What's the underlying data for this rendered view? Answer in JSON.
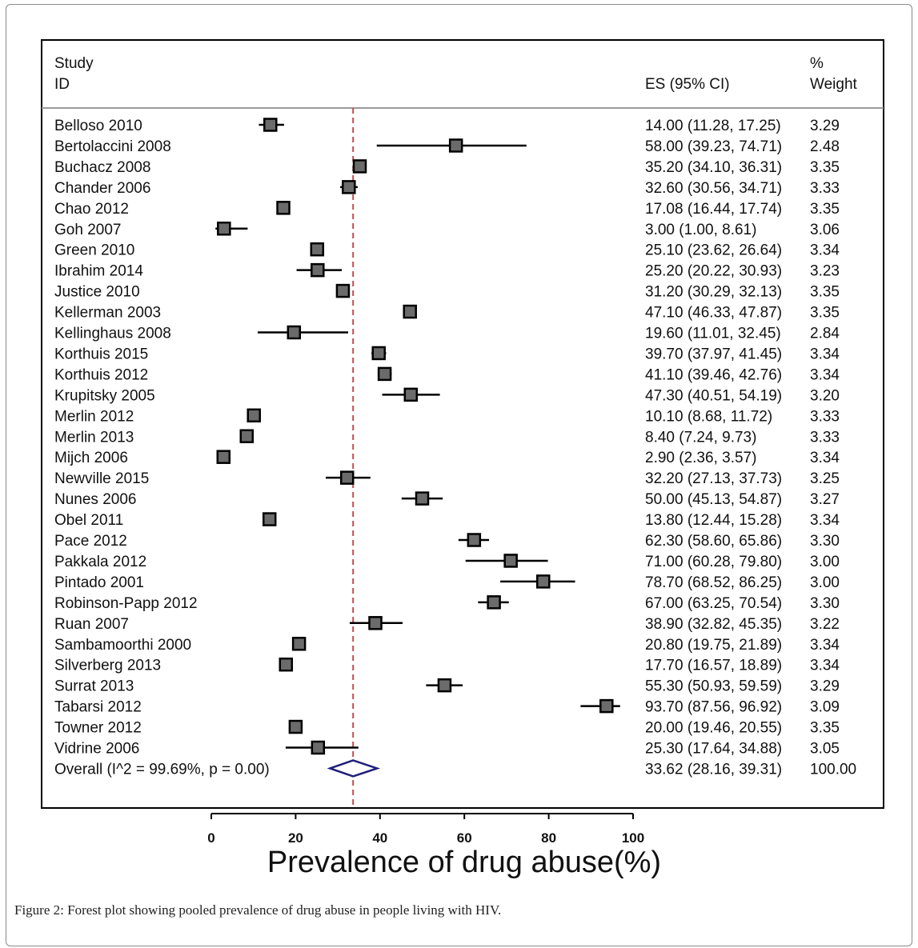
{
  "chart_data": {
    "type": "forest",
    "xlabel": "Prevalence of drug abuse(%)",
    "xlim": [
      0,
      100
    ],
    "xticks": [
      0,
      20,
      40,
      60,
      80,
      100
    ],
    "pooled_reference_line": 33.62,
    "headers": {
      "study_line1": "Study",
      "study_line2": "ID",
      "es": "ES (95% CI)",
      "weight_line1": "%",
      "weight_line2": "Weight"
    },
    "studies": [
      {
        "name": "Belloso 2010",
        "es": 14.0,
        "lo": 11.28,
        "hi": 17.25,
        "es_text": "14.00 (11.28, 17.25)",
        "weight": "3.29"
      },
      {
        "name": "Bertolaccini 2008",
        "es": 58.0,
        "lo": 39.23,
        "hi": 74.71,
        "es_text": "58.00 (39.23, 74.71)",
        "weight": "2.48"
      },
      {
        "name": "Buchacz 2008",
        "es": 35.2,
        "lo": 34.1,
        "hi": 36.31,
        "es_text": "35.20 (34.10, 36.31)",
        "weight": "3.35"
      },
      {
        "name": "Chander 2006",
        "es": 32.6,
        "lo": 30.56,
        "hi": 34.71,
        "es_text": "32.60 (30.56, 34.71)",
        "weight": "3.33"
      },
      {
        "name": "Chao 2012",
        "es": 17.08,
        "lo": 16.44,
        "hi": 17.74,
        "es_text": "17.08 (16.44, 17.74)",
        "weight": "3.35"
      },
      {
        "name": "Goh 2007",
        "es": 3.0,
        "lo": 1.0,
        "hi": 8.61,
        "es_text": "3.00 (1.00, 8.61)",
        "weight": "3.06"
      },
      {
        "name": "Green 2010",
        "es": 25.1,
        "lo": 23.62,
        "hi": 26.64,
        "es_text": "25.10 (23.62, 26.64)",
        "weight": "3.34"
      },
      {
        "name": "Ibrahim 2014",
        "es": 25.2,
        "lo": 20.22,
        "hi": 30.93,
        "es_text": "25.20 (20.22, 30.93)",
        "weight": "3.23"
      },
      {
        "name": "Justice 2010",
        "es": 31.2,
        "lo": 30.29,
        "hi": 32.13,
        "es_text": "31.20 (30.29, 32.13)",
        "weight": "3.35"
      },
      {
        "name": "Kellerman 2003",
        "es": 47.1,
        "lo": 46.33,
        "hi": 47.87,
        "es_text": "47.10 (46.33, 47.87)",
        "weight": "3.35"
      },
      {
        "name": "Kellinghaus 2008",
        "es": 19.6,
        "lo": 11.01,
        "hi": 32.45,
        "es_text": "19.60 (11.01, 32.45)",
        "weight": "2.84"
      },
      {
        "name": "Korthuis 2015",
        "es": 39.7,
        "lo": 37.97,
        "hi": 41.45,
        "es_text": "39.70 (37.97, 41.45)",
        "weight": "3.34"
      },
      {
        "name": "Korthuis 2012",
        "es": 41.1,
        "lo": 39.46,
        "hi": 42.76,
        "es_text": "41.10 (39.46, 42.76)",
        "weight": "3.34"
      },
      {
        "name": "Krupitsky 2005",
        "es": 47.3,
        "lo": 40.51,
        "hi": 54.19,
        "es_text": "47.30 (40.51, 54.19)",
        "weight": "3.20"
      },
      {
        "name": "Merlin 2012",
        "es": 10.1,
        "lo": 8.68,
        "hi": 11.72,
        "es_text": "10.10 (8.68, 11.72)",
        "weight": "3.33"
      },
      {
        "name": "Merlin 2013",
        "es": 8.4,
        "lo": 7.24,
        "hi": 9.73,
        "es_text": "8.40 (7.24, 9.73)",
        "weight": "3.33"
      },
      {
        "name": "Mijch 2006",
        "es": 2.9,
        "lo": 2.36,
        "hi": 3.57,
        "es_text": "2.90 (2.36, 3.57)",
        "weight": "3.34"
      },
      {
        "name": "Newville 2015",
        "es": 32.2,
        "lo": 27.13,
        "hi": 37.73,
        "es_text": "32.20 (27.13, 37.73)",
        "weight": "3.25"
      },
      {
        "name": "Nunes 2006",
        "es": 50.0,
        "lo": 45.13,
        "hi": 54.87,
        "es_text": "50.00 (45.13, 54.87)",
        "weight": "3.27"
      },
      {
        "name": "Obel 2011",
        "es": 13.8,
        "lo": 12.44,
        "hi": 15.28,
        "es_text": "13.80 (12.44, 15.28)",
        "weight": "3.34"
      },
      {
        "name": "Pace 2012",
        "es": 62.3,
        "lo": 58.6,
        "hi": 65.86,
        "es_text": "62.30 (58.60, 65.86)",
        "weight": "3.30"
      },
      {
        "name": "Pakkala 2012",
        "es": 71.0,
        "lo": 60.28,
        "hi": 79.8,
        "es_text": "71.00 (60.28, 79.80)",
        "weight": "3.00"
      },
      {
        "name": "Pintado 2001",
        "es": 78.7,
        "lo": 68.52,
        "hi": 86.25,
        "es_text": "78.70 (68.52, 86.25)",
        "weight": "3.00"
      },
      {
        "name": "Robinson-Papp 2012",
        "es": 67.0,
        "lo": 63.25,
        "hi": 70.54,
        "es_text": "67.00 (63.25, 70.54)",
        "weight": "3.30"
      },
      {
        "name": "Ruan 2007",
        "es": 38.9,
        "lo": 32.82,
        "hi": 45.35,
        "es_text": "38.90 (32.82, 45.35)",
        "weight": "3.22"
      },
      {
        "name": "Sambamoorthi 2000",
        "es": 20.8,
        "lo": 19.75,
        "hi": 21.89,
        "es_text": "20.80 (19.75, 21.89)",
        "weight": "3.34"
      },
      {
        "name": "Silverberg 2013",
        "es": 17.7,
        "lo": 16.57,
        "hi": 18.89,
        "es_text": "17.70 (16.57, 18.89)",
        "weight": "3.34"
      },
      {
        "name": "Surrat 2013",
        "es": 55.3,
        "lo": 50.93,
        "hi": 59.59,
        "es_text": "55.30 (50.93, 59.59)",
        "weight": "3.29"
      },
      {
        "name": "Tabarsi 2012",
        "es": 93.7,
        "lo": 87.56,
        "hi": 96.92,
        "es_text": "93.70 (87.56, 96.92)",
        "weight": "3.09"
      },
      {
        "name": "Towner 2012",
        "es": 20.0,
        "lo": 19.46,
        "hi": 20.55,
        "es_text": "20.00 (19.46, 20.55)",
        "weight": "3.35"
      },
      {
        "name": "Vidrine 2006",
        "es": 25.3,
        "lo": 17.64,
        "hi": 34.88,
        "es_text": "25.30 (17.64, 34.88)",
        "weight": "3.05"
      }
    ],
    "overall": {
      "label": "Overall  (I^2 = 99.69%, p = 0.00)",
      "es": 33.62,
      "lo": 28.16,
      "hi": 39.31,
      "es_text": "33.62 (28.16, 39.31)",
      "weight": "100.00"
    },
    "colors": {
      "marker_fill": "#6b6b6b",
      "marker_edge": "#000000",
      "ci_line": "#000000",
      "reference_line": "#c0504d",
      "diamond": "#1f1f7a",
      "frame": "#000000"
    }
  },
  "caption": {
    "lead": "Figure 2:",
    "text": " Forest plot showing pooled prevalence of drug abuse in people living with HIV."
  }
}
